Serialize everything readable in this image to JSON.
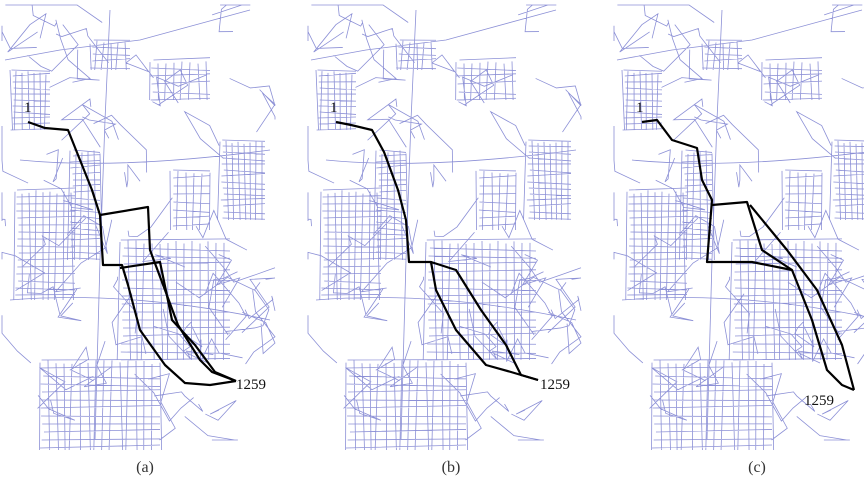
{
  "panels": [
    {
      "start_label": "1",
      "end_label": "1259",
      "caption": "(a)"
    },
    {
      "start_label": "1",
      "end_label": "1259",
      "caption": "(b)"
    },
    {
      "start_label": "1",
      "end_label": "1259",
      "caption": "(c)"
    }
  ]
}
